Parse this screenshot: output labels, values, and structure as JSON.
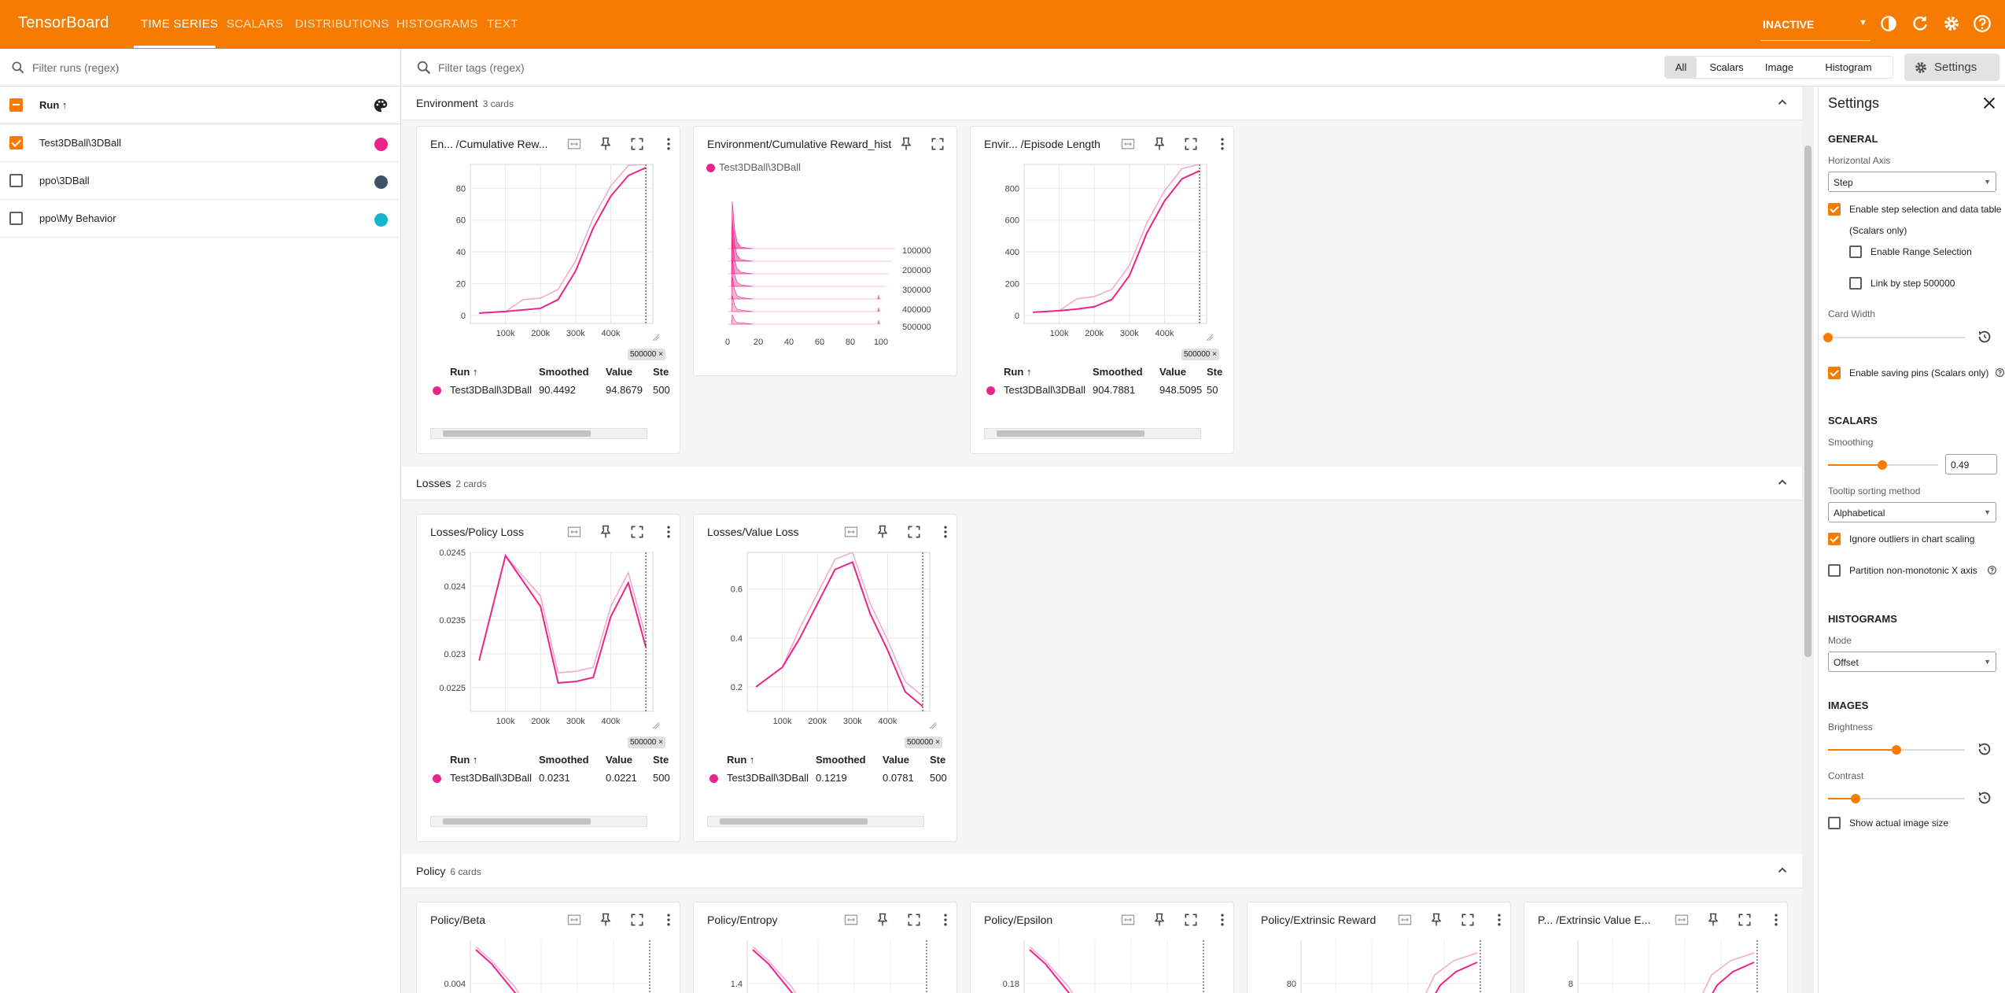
{
  "header": {
    "brand": "TensorBoard",
    "tabs": [
      "TIME SERIES",
      "SCALARS",
      "DISTRIBUTIONS",
      "HISTOGRAMS",
      "TEXT"
    ],
    "active_tab": "TIME SERIES",
    "status_select": "INACTIVE",
    "accent_color": "#f57c00"
  },
  "runs": {
    "filter_placeholder": "Filter runs (regex)",
    "header_label": "Run ↑",
    "items": [
      {
        "name": "Test3DBall\\3DBall",
        "checked": true,
        "color": "#e8258c"
      },
      {
        "name": "ppo\\3DBall",
        "checked": false,
        "color": "#425066"
      },
      {
        "name": "ppo\\My Behavior",
        "checked": false,
        "color": "#12b5cb"
      }
    ]
  },
  "tagbar": {
    "filter_placeholder": "Filter tags (regex)",
    "types": [
      "All",
      "Scalars",
      "Image",
      "Histogram"
    ],
    "selected_type": "All",
    "settings_label": "Settings"
  },
  "groups": [
    {
      "name": "Environment",
      "count": "3 cards"
    },
    {
      "name": "Losses",
      "count": "2 cards"
    },
    {
      "name": "Policy",
      "count": "6 cards"
    }
  ],
  "table_headers": {
    "run": "Run ↑",
    "smoothed": "Smoothed",
    "value": "Value",
    "step": "Ste"
  },
  "cards": {
    "env_reward": {
      "title": "En... /Cumulative Rew...",
      "row": {
        "run": "Test3DBall\\3DBall",
        "smoothed": "90.4492",
        "value": "94.8679",
        "step": "500"
      },
      "step_chip": "500000",
      "y_ticks": [
        "80",
        "60",
        "40",
        "20",
        "0"
      ],
      "x_ticks": [
        "100k",
        "200k",
        "300k",
        "400k"
      ]
    },
    "env_hist": {
      "title": "Environment/Cumulative Reward_hist",
      "legend": "Test3DBall\\3DBall",
      "y_ticks": [
        "100000",
        "200000",
        "300000",
        "400000",
        "500000"
      ],
      "x_ticks": [
        "0",
        "20",
        "40",
        "60",
        "80",
        "100"
      ]
    },
    "env_length": {
      "title": "Envir... /Episode Length",
      "row": {
        "run": "Test3DBall\\3DBall",
        "smoothed": "904.7881",
        "value": "948.5095",
        "step": "50"
      },
      "step_chip": "500000",
      "y_ticks": [
        "800",
        "600",
        "400",
        "200",
        "0"
      ],
      "x_ticks": [
        "100k",
        "200k",
        "300k",
        "400k"
      ]
    },
    "policy_loss": {
      "title": "Losses/Policy Loss",
      "row": {
        "run": "Test3DBall\\3DBall",
        "smoothed": "0.0231",
        "value": "0.0221",
        "step": "500"
      },
      "step_chip": "500000",
      "y_ticks": [
        "0.0245",
        "0.024",
        "0.0235",
        "0.023",
        "0.0225"
      ],
      "x_ticks": [
        "100k",
        "200k",
        "300k",
        "400k"
      ]
    },
    "value_loss": {
      "title": "Losses/Value Loss",
      "row": {
        "run": "Test3DBall\\3DBall",
        "smoothed": "0.1219",
        "value": "0.0781",
        "step": "500"
      },
      "step_chip": "500000",
      "y_ticks": [
        "0.6",
        "0.4",
        "0.2"
      ],
      "x_ticks": [
        "100k",
        "200k",
        "300k",
        "400k"
      ]
    },
    "policy_beta": {
      "title": "Policy/Beta",
      "y_ticks": [
        "0.004"
      ]
    },
    "policy_entropy": {
      "title": "Policy/Entropy",
      "y_ticks": [
        "1.4"
      ]
    },
    "policy_epsilon": {
      "title": "Policy/Epsilon",
      "y_ticks": [
        "0.18"
      ]
    },
    "policy_ext_reward": {
      "title": "Policy/Extrinsic Reward",
      "y_ticks": [
        "80"
      ]
    },
    "policy_ext_value": {
      "title": "P... /Extrinsic Value E...",
      "y_ticks": [
        "8"
      ]
    }
  },
  "chart_data": [
    {
      "type": "line",
      "title": "En... /Cumulative Rew...",
      "x": [
        25000,
        100000,
        150000,
        200000,
        250000,
        300000,
        350000,
        400000,
        450000,
        500000
      ],
      "series": [
        {
          "name": "Test3DBall\\3DBall",
          "values": [
            1.5,
            2.5,
            3.5,
            4.5,
            10,
            28,
            55,
            75,
            88,
            93
          ]
        }
      ],
      "ylim": [
        -5,
        95
      ],
      "xlim": [
        0,
        520000
      ]
    },
    {
      "type": "line",
      "title": "Envir... /Episode Length",
      "x": [
        25000,
        100000,
        150000,
        200000,
        250000,
        300000,
        350000,
        400000,
        450000,
        500000
      ],
      "series": [
        {
          "name": "Test3DBall\\3DBall",
          "values": [
            20,
            30,
            40,
            55,
            100,
            250,
            520,
            720,
            860,
            910
          ]
        }
      ],
      "ylim": [
        -50,
        950
      ],
      "xlim": [
        0,
        520000
      ]
    },
    {
      "type": "line",
      "title": "Losses/Policy Loss",
      "x": [
        25000,
        100000,
        200000,
        250000,
        300000,
        350000,
        400000,
        450000,
        500000
      ],
      "series": [
        {
          "name": "Test3DBall\\3DBall",
          "values": [
            0.0229,
            0.02445,
            0.0237,
            0.02257,
            0.02259,
            0.02265,
            0.02355,
            0.02405,
            0.0231
          ]
        }
      ],
      "ylim": [
        0.02215,
        0.0245
      ],
      "xlim": [
        0,
        520000
      ]
    },
    {
      "type": "line",
      "title": "Losses/Value Loss",
      "x": [
        25000,
        100000,
        150000,
        200000,
        250000,
        300000,
        350000,
        400000,
        450000,
        500000
      ],
      "series": [
        {
          "name": "Test3DBall\\3DBall",
          "values": [
            0.2,
            0.28,
            0.4,
            0.54,
            0.68,
            0.71,
            0.5,
            0.35,
            0.18,
            0.12
          ]
        }
      ],
      "ylim": [
        0.1,
        0.75
      ],
      "xlim": [
        0,
        520000
      ]
    }
  ],
  "settings": {
    "title": "Settings",
    "general": {
      "heading": "GENERAL",
      "horizontal_axis_label": "Horizontal Axis",
      "horizontal_axis_value": "Step",
      "enable_step_selection": "Enable step selection and data table",
      "scalars_only": "(Scalars only)",
      "enable_range": "Enable Range Selection",
      "link_by_step": "Link by step 500000",
      "card_width_label": "Card Width",
      "card_width_level": 0.0,
      "enable_saving_pins": "Enable saving pins (Scalars only)"
    },
    "scalars": {
      "heading": "SCALARS",
      "smoothing_label": "Smoothing",
      "smoothing_value": "0.49",
      "tooltip_label": "Tooltip sorting method",
      "tooltip_value": "Alphabetical",
      "ignore_outliers": "Ignore outliers in chart scaling",
      "partition": "Partition non-monotonic X axis"
    },
    "histograms": {
      "heading": "HISTOGRAMS",
      "mode_label": "Mode",
      "mode_value": "Offset"
    },
    "images": {
      "heading": "IMAGES",
      "brightness_label": "Brightness",
      "brightness_level": 0.5,
      "contrast_label": "Contrast",
      "contrast_level": 0.2,
      "show_actual": "Show actual image size"
    }
  }
}
